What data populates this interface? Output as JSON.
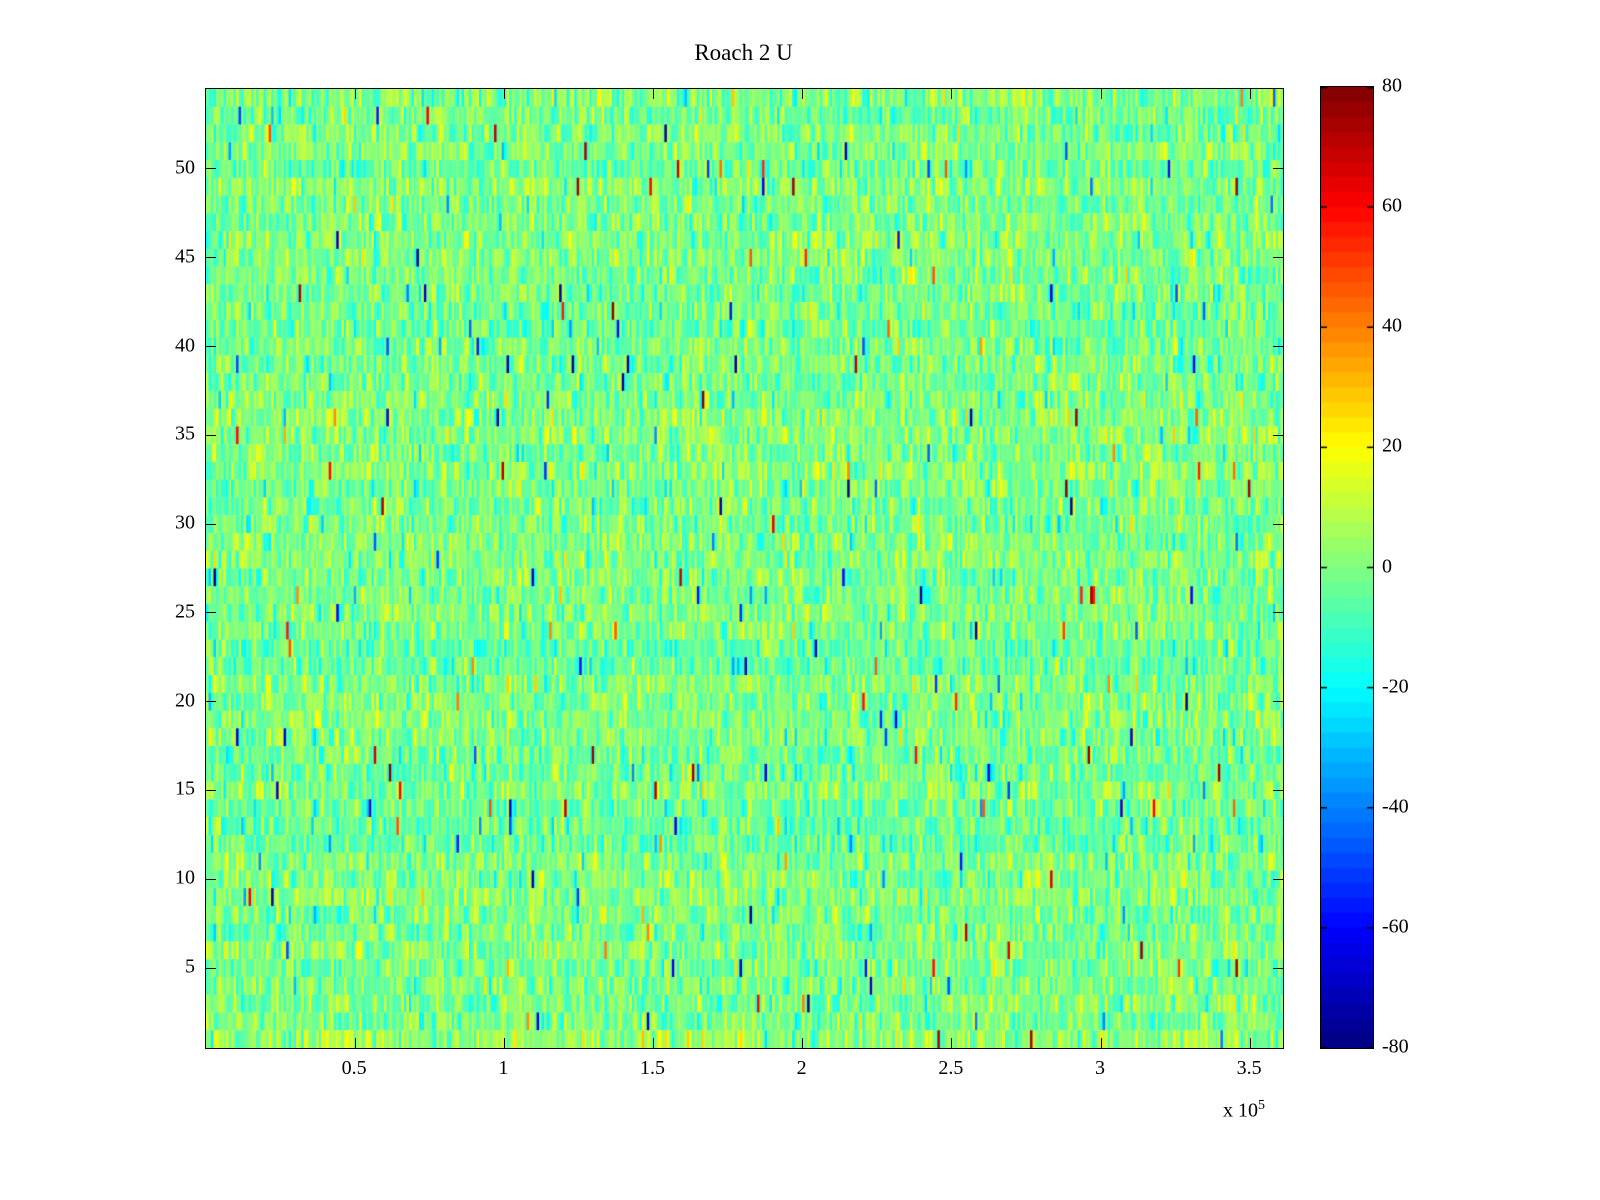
{
  "figure": {
    "background_color": "#ffffff",
    "frame_color": "#000000"
  },
  "chart_data": {
    "type": "heatmap",
    "title": "Roach 2 U",
    "xlabel": "",
    "ylabel": "",
    "x_range": [
      0,
      361000
    ],
    "y_range": [
      0.5,
      54.5
    ],
    "x_ticks": [
      50000,
      100000,
      150000,
      200000,
      250000,
      300000,
      350000
    ],
    "x_tick_labels": [
      "0.5",
      "1",
      "1.5",
      "2",
      "2.5",
      "3",
      "3.5"
    ],
    "x_scale": {
      "base": "x 10",
      "exp": "5"
    },
    "y_ticks": [
      5,
      10,
      15,
      20,
      25,
      30,
      35,
      40,
      45,
      50
    ],
    "y_tick_labels": [
      "5",
      "10",
      "15",
      "20",
      "25",
      "30",
      "35",
      "40",
      "45",
      "50"
    ],
    "colormap": "jet",
    "clim": [
      -80,
      80
    ],
    "colorbar_ticks": [
      80,
      60,
      40,
      20,
      0,
      -20,
      -40,
      -60,
      -80
    ],
    "colorbar_tick_labels": [
      "80",
      "60",
      "40",
      "20",
      "0",
      "-20",
      "-40",
      "-60",
      "-80"
    ],
    "grid": {
      "rows": 54,
      "cols": 430
    },
    "legend_position": "colorbar-right",
    "grid_lines": false,
    "data_description": "Dense random noise field (spectrogram-like), values concentrated near 0 (green), frequent flecks around ±10 to ±25 (yellow/cyan), rare outliers approaching ±80 (dark red / dark blue)",
    "noise": {
      "seed": 1337,
      "mean": -1,
      "std": 9,
      "row_bias_std": 1.5,
      "outlier_prob": 0.008,
      "outlier_min": 35,
      "outlier_max": 80
    }
  }
}
